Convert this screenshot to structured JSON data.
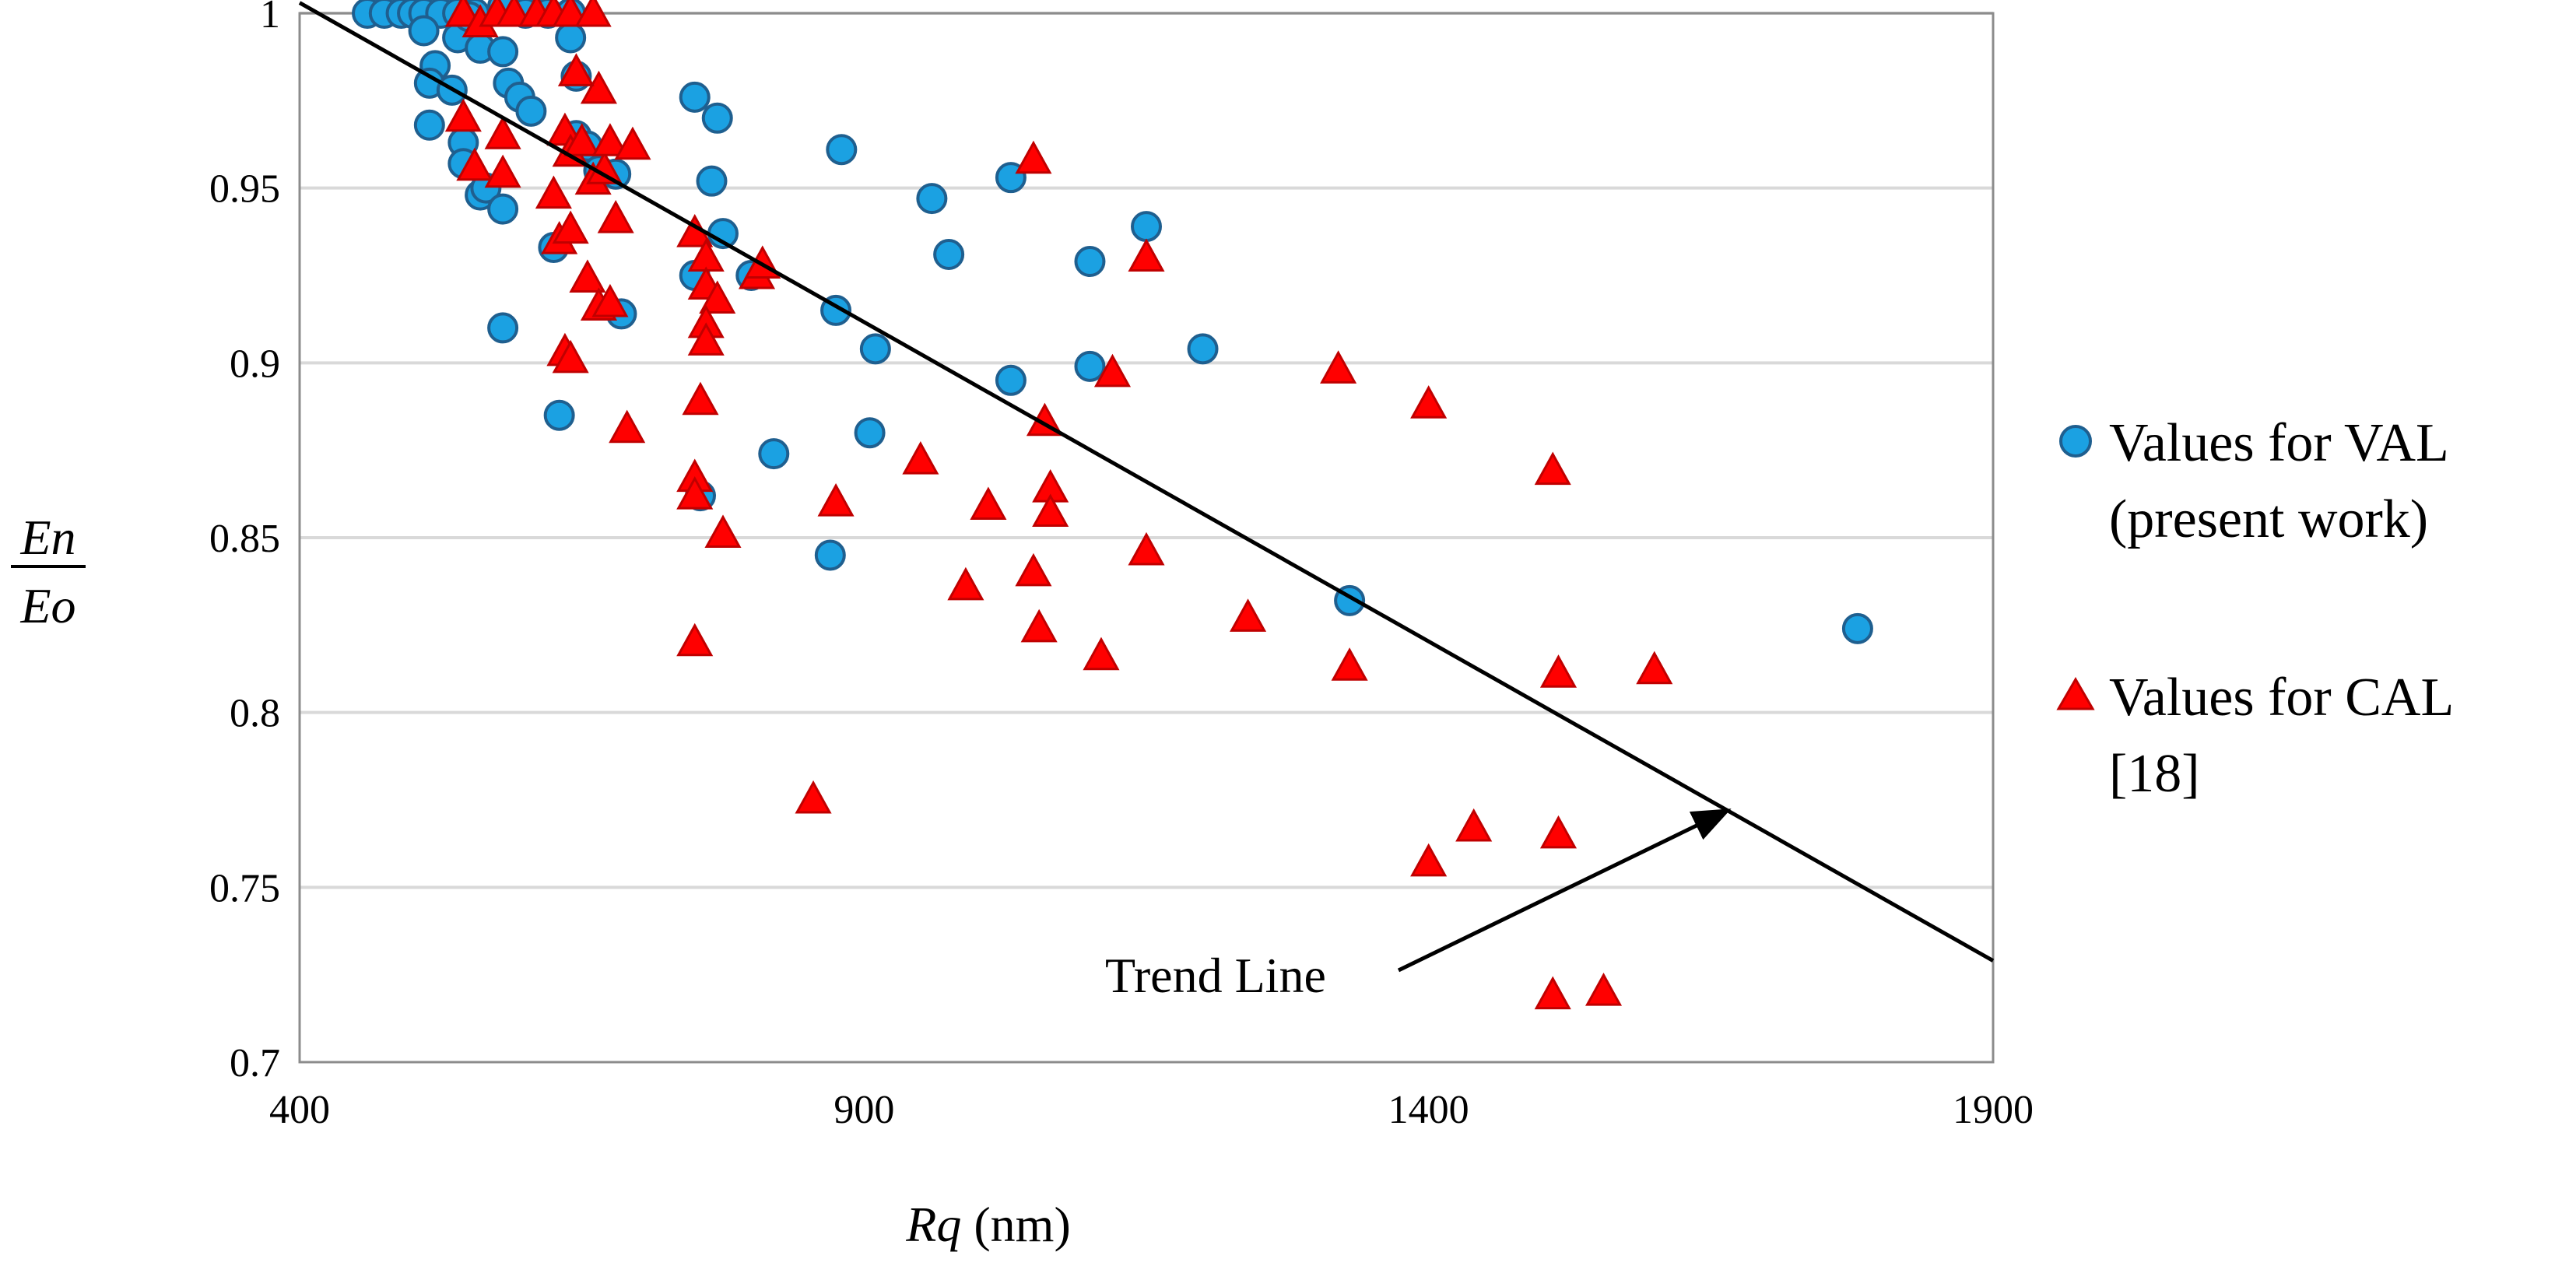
{
  "chart_data": {
    "type": "scatter",
    "title": "",
    "xlabel_italic": "Rq",
    "xlabel_rest": " (nm)",
    "ylabel_numerator": "En",
    "ylabel_denominator": "Eo",
    "xlim": [
      400,
      1900
    ],
    "ylim": [
      0.7,
      1.0
    ],
    "xticks": [
      400,
      900,
      1400,
      1900
    ],
    "xtick_labels": [
      "400",
      "900",
      "1400",
      "1900"
    ],
    "yticks": [
      0.7,
      0.75,
      0.8,
      0.85,
      0.9,
      0.95,
      1.0
    ],
    "ytick_labels": [
      "0.7",
      "0.75",
      "0.8",
      "0.85",
      "0.9",
      "0.95",
      "1"
    ],
    "grid": "horizontal",
    "legend_position": "right",
    "series": [
      {
        "name": "Values for VAL (present work)",
        "legend_line1": "Values for VAL",
        "legend_line2": "(present work)",
        "marker": "circle",
        "color": "#1ba1e2",
        "edge_color": "#1f5f8f",
        "points": [
          [
            460,
            1.0
          ],
          [
            475,
            1.0
          ],
          [
            490,
            1.0
          ],
          [
            500,
            1.0
          ],
          [
            510,
            1.0
          ],
          [
            525,
            1.0
          ],
          [
            540,
            1.0
          ],
          [
            555,
            1.0
          ],
          [
            580,
            1.002
          ],
          [
            600,
            1.0
          ],
          [
            620,
            1.0
          ],
          [
            640,
            1.0
          ],
          [
            510,
            0.995
          ],
          [
            540,
            0.993
          ],
          [
            560,
            0.99
          ],
          [
            640,
            0.993
          ],
          [
            550,
            0.999
          ],
          [
            520,
            0.985
          ],
          [
            515,
            0.98
          ],
          [
            535,
            0.978
          ],
          [
            580,
            0.989
          ],
          [
            585,
            0.98
          ],
          [
            595,
            0.976
          ],
          [
            605,
            0.972
          ],
          [
            645,
            0.982
          ],
          [
            645,
            0.965
          ],
          [
            655,
            0.962
          ],
          [
            515,
            0.968
          ],
          [
            545,
            0.963
          ],
          [
            545,
            0.957
          ],
          [
            560,
            0.948
          ],
          [
            565,
            0.95
          ],
          [
            580,
            0.944
          ],
          [
            625,
            0.933
          ],
          [
            630,
            0.885
          ],
          [
            580,
            0.91
          ],
          [
            665,
            0.955
          ],
          [
            680,
            0.954
          ],
          [
            685,
            0.914
          ],
          [
            750,
            0.976
          ],
          [
            765,
            0.952
          ],
          [
            770,
            0.97
          ],
          [
            775,
            0.937
          ],
          [
            750,
            0.925
          ],
          [
            755,
            0.862
          ],
          [
            800,
            0.925
          ],
          [
            820,
            0.874
          ],
          [
            870,
            0.845
          ],
          [
            875,
            0.915
          ],
          [
            880,
            0.961
          ],
          [
            910,
            0.904
          ],
          [
            905,
            0.88
          ],
          [
            960,
            0.947
          ],
          [
            975,
            0.931
          ],
          [
            1030,
            0.953
          ],
          [
            1030,
            0.895
          ],
          [
            1100,
            0.929
          ],
          [
            1100,
            0.899
          ],
          [
            1150,
            0.939
          ],
          [
            1200,
            0.904
          ],
          [
            1330,
            0.832
          ],
          [
            1780,
            0.824
          ]
        ]
      },
      {
        "name": "Values for CAL [18]",
        "legend_line1": "Values for CAL",
        "legend_line2": "[18]",
        "marker": "triangle",
        "color": "#ff0000",
        "edge_color": "#c00000",
        "points": [
          [
            545,
            1.0
          ],
          [
            560,
            0.997
          ],
          [
            575,
            1.0
          ],
          [
            590,
            1.0
          ],
          [
            610,
            1.0
          ],
          [
            625,
            1.0
          ],
          [
            640,
            1.0
          ],
          [
            660,
            1.0
          ],
          [
            665,
            0.978
          ],
          [
            645,
            0.983
          ],
          [
            545,
            0.97
          ],
          [
            555,
            0.956
          ],
          [
            580,
            0.965
          ],
          [
            580,
            0.954
          ],
          [
            635,
            0.966
          ],
          [
            640,
            0.96
          ],
          [
            650,
            0.963
          ],
          [
            660,
            0.952
          ],
          [
            670,
            0.955
          ],
          [
            675,
            0.963
          ],
          [
            695,
            0.962
          ],
          [
            625,
            0.948
          ],
          [
            630,
            0.935
          ],
          [
            640,
            0.938
          ],
          [
            655,
            0.924
          ],
          [
            680,
            0.941
          ],
          [
            665,
            0.916
          ],
          [
            675,
            0.917
          ],
          [
            635,
            0.903
          ],
          [
            640,
            0.901
          ],
          [
            690,
            0.881
          ],
          [
            750,
            0.937
          ],
          [
            760,
            0.93
          ],
          [
            760,
            0.922
          ],
          [
            770,
            0.918
          ],
          [
            805,
            0.925
          ],
          [
            810,
            0.928
          ],
          [
            760,
            0.911
          ],
          [
            760,
            0.906
          ],
          [
            755,
            0.889
          ],
          [
            750,
            0.867
          ],
          [
            750,
            0.862
          ],
          [
            775,
            0.851
          ],
          [
            750,
            0.82
          ],
          [
            855,
            0.775
          ],
          [
            875,
            0.86
          ],
          [
            950,
            0.872
          ],
          [
            990,
            0.836
          ],
          [
            1010,
            0.859
          ],
          [
            1050,
            0.84
          ],
          [
            1060,
            0.883
          ],
          [
            1065,
            0.864
          ],
          [
            1065,
            0.857
          ],
          [
            1055,
            0.824
          ],
          [
            1050,
            0.958
          ],
          [
            1110,
            0.816
          ],
          [
            1120,
            0.897
          ],
          [
            1150,
            0.93
          ],
          [
            1150,
            0.846
          ],
          [
            1240,
            0.827
          ],
          [
            1320,
            0.898
          ],
          [
            1330,
            0.813
          ],
          [
            1400,
            0.888
          ],
          [
            1510,
            0.869
          ],
          [
            1515,
            0.811
          ],
          [
            1600,
            0.812
          ],
          [
            1400,
            0.757
          ],
          [
            1440,
            0.767
          ],
          [
            1515,
            0.765
          ],
          [
            1510,
            0.719
          ],
          [
            1555,
            0.72
          ]
        ]
      }
    ],
    "trend_line": {
      "x": [
        400,
        1900
      ],
      "y": [
        1.003,
        0.729
      ]
    },
    "annotations": [
      {
        "text": "Trend Line",
        "arrow_to": [
          1665,
          0.772
        ]
      }
    ]
  }
}
